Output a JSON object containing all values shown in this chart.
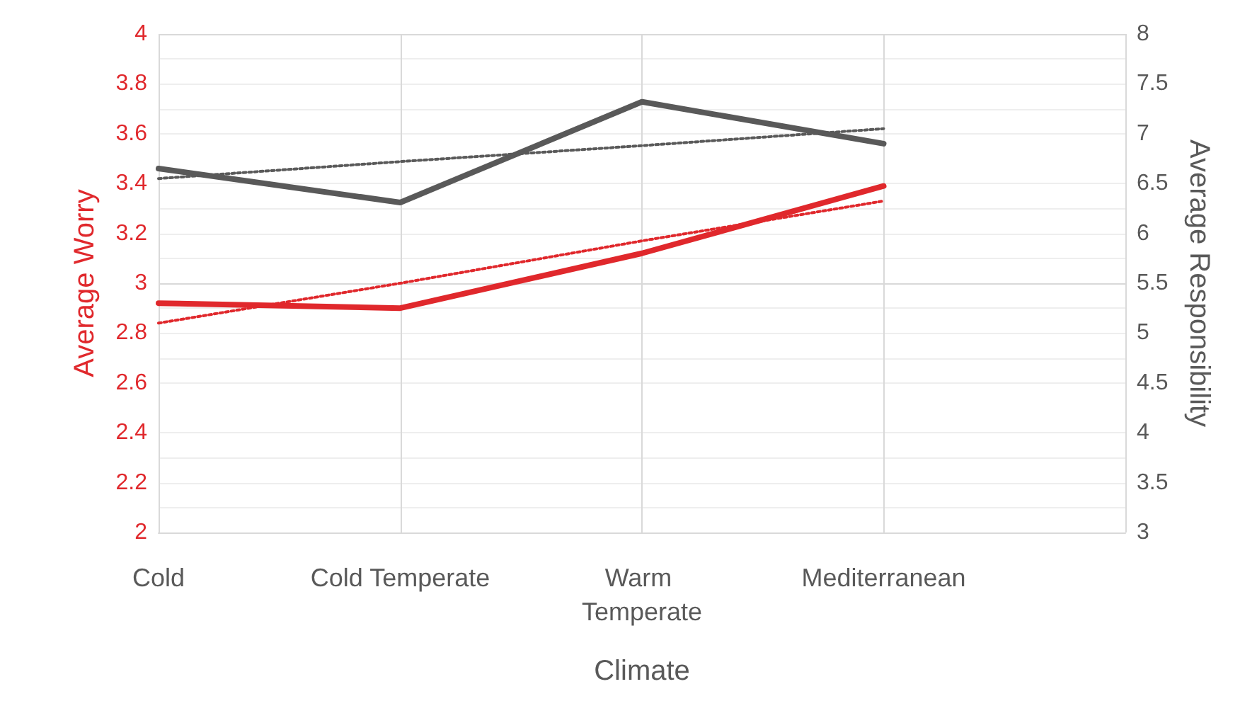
{
  "chart_data": {
    "type": "line",
    "xlabel": "Climate",
    "ylabel": "Average Worry",
    "y2label": "Average Responsibility",
    "categories": [
      "Cold",
      "Cold Temperate",
      "Warm Temperate",
      "Mediterranean"
    ],
    "series": [
      {
        "color": "#e0282c",
        "values": [
          2.92,
          2.9,
          3.12,
          3.39
        ],
        "line_style": "solid"
      },
      {
        "color": "#595959",
        "values": [
          6.65,
          6.31,
          7.32,
          6.9
        ],
        "axis": "y2",
        "line_style": "solid"
      },
      {
        "color": "#e0282c",
        "values": [
          2.84,
          3.0,
          3.17,
          3.33
        ],
        "line_style": "dotted"
      },
      {
        "color": "#595959",
        "values": [
          6.55,
          6.72,
          6.88,
          7.05
        ],
        "axis": "y2",
        "line_style": "dotted"
      }
    ],
    "ylim": [
      2,
      4
    ],
    "yticks": [
      2,
      2.2,
      2.4,
      2.6,
      2.8,
      3,
      3.2,
      3.4,
      3.6,
      3.8,
      4
    ],
    "y2lim": [
      3,
      8
    ],
    "y2ticks": [
      3,
      3.5,
      4,
      4.5,
      5,
      5.5,
      6,
      6.5,
      7,
      7.5,
      8
    ],
    "grid": true,
    "marker": "none"
  }
}
